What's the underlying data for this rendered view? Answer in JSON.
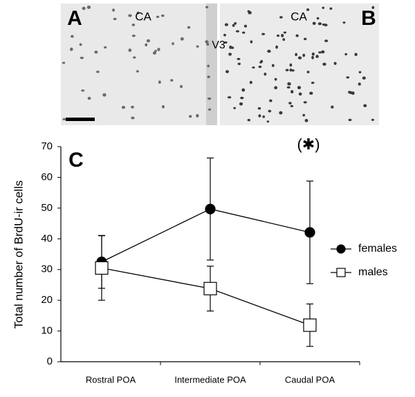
{
  "micrographs": {
    "panels": [
      {
        "label": "A",
        "region": "CA"
      },
      {
        "label": "B",
        "region": "CA"
      }
    ],
    "midline_label": "V3"
  },
  "chart_data": {
    "type": "line",
    "panel_label": "C",
    "annotation": "(✱)",
    "y_label": "Total number of BrdU-ir cells",
    "categories": [
      "Rostral POA",
      "Intermediate POA",
      "Caudal POA"
    ],
    "series": [
      {
        "name": "females",
        "color": "#000000",
        "marker": "circle",
        "values": [
          32.5,
          49.7,
          42.1
        ],
        "errors": [
          8.6,
          16.6,
          16.7
        ]
      },
      {
        "name": "males",
        "color": "#ffffff",
        "marker": "square",
        "values": [
          30.5,
          23.8,
          11.9
        ],
        "errors": [
          10.5,
          7.3,
          6.9
        ]
      }
    ],
    "ylim": [
      0,
      70
    ],
    "yticks": [
      0,
      10,
      20,
      30,
      40,
      50,
      60,
      70
    ],
    "grid": false,
    "legend": "right"
  }
}
